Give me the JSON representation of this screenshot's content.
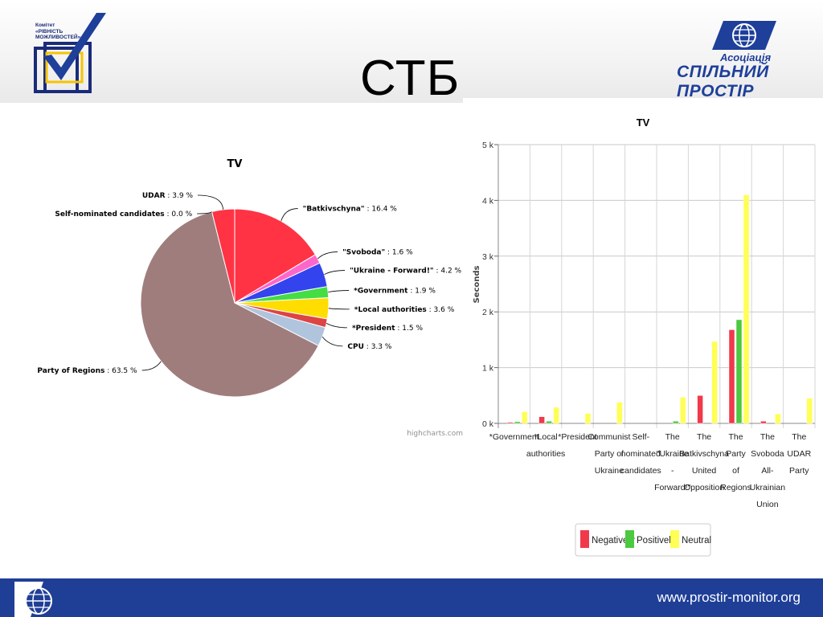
{
  "slide": {
    "title": "СТБ",
    "logo_left_text": [
      "Комітет",
      "«РІВНІСТЬ",
      "МОЖЛИВОСТЕЙ»"
    ],
    "logo_right_line1": "Асоціація",
    "logo_right_line2": "СПІЛЬНИЙ ПРОСТІР",
    "footer_url": "www.prostir-monitor.org",
    "credit": "highcharts.com"
  },
  "colors": {
    "negatively": "#f0394a",
    "positively": "#4cc93f",
    "neutral": "#ffff55",
    "footer": "#1f3f97"
  },
  "chart_data": [
    {
      "type": "pie",
      "title": "TV",
      "slices": [
        {
          "name": "\"Batkivschyna\"",
          "value": 16.4,
          "color": "#ff3344"
        },
        {
          "name": "\"Svoboda\"",
          "value": 1.6,
          "color": "#ff66cc"
        },
        {
          "name": "\"Ukraine - Forward!\"",
          "value": 4.2,
          "color": "#3344ee"
        },
        {
          "name": "*Government",
          "value": 1.9,
          "color": "#44dd44"
        },
        {
          "name": "*Local authorities",
          "value": 3.6,
          "color": "#ffdd00"
        },
        {
          "name": "*President",
          "value": 1.5,
          "color": "#dd4444"
        },
        {
          "name": "CPU",
          "value": 3.3,
          "color": "#b0c4de"
        },
        {
          "name": "Party of Regions",
          "value": 63.5,
          "color": "#a07d7d"
        },
        {
          "name": "Self-nominated candidates",
          "value": 0.0,
          "color": "#888888"
        },
        {
          "name": "UDAR",
          "value": 3.9,
          "color": "#ff3344"
        }
      ],
      "label_suffix": " %"
    },
    {
      "type": "bar",
      "title": "TV",
      "ylabel": "Seconds",
      "ylim": [
        0,
        5000
      ],
      "yticks": [
        "0 k",
        "1 k",
        "2 k",
        "3 k",
        "4 k",
        "5 k"
      ],
      "grid": true,
      "legend": "bottom-center",
      "categories": [
        [
          "*Government"
        ],
        [
          "*Local",
          "authorities"
        ],
        [
          "*President"
        ],
        [
          "Communist",
          "Party of",
          "Ukraine"
        ],
        [
          "Self-",
          "nominated",
          "candidates"
        ],
        [
          "The",
          "\"Ukraine",
          "-",
          "Forward!\""
        ],
        [
          "The",
          "Batkivschyna",
          "United",
          "Opposition"
        ],
        [
          "The",
          "Party",
          "of",
          "Regions"
        ],
        [
          "The",
          "Svoboda",
          "All-",
          "Ukrainian",
          "Union"
        ],
        [
          "The",
          "UDAR",
          "Party"
        ]
      ],
      "series": [
        {
          "name": "Negatively",
          "values": [
            20,
            120,
            0,
            0,
            0,
            0,
            500,
            1680,
            40,
            0
          ]
        },
        {
          "name": "Positively",
          "values": [
            30,
            40,
            0,
            0,
            0,
            40,
            0,
            1860,
            0,
            0
          ]
        },
        {
          "name": "Neutral",
          "values": [
            210,
            290,
            180,
            380,
            0,
            470,
            1470,
            4100,
            170,
            450
          ]
        }
      ]
    }
  ]
}
